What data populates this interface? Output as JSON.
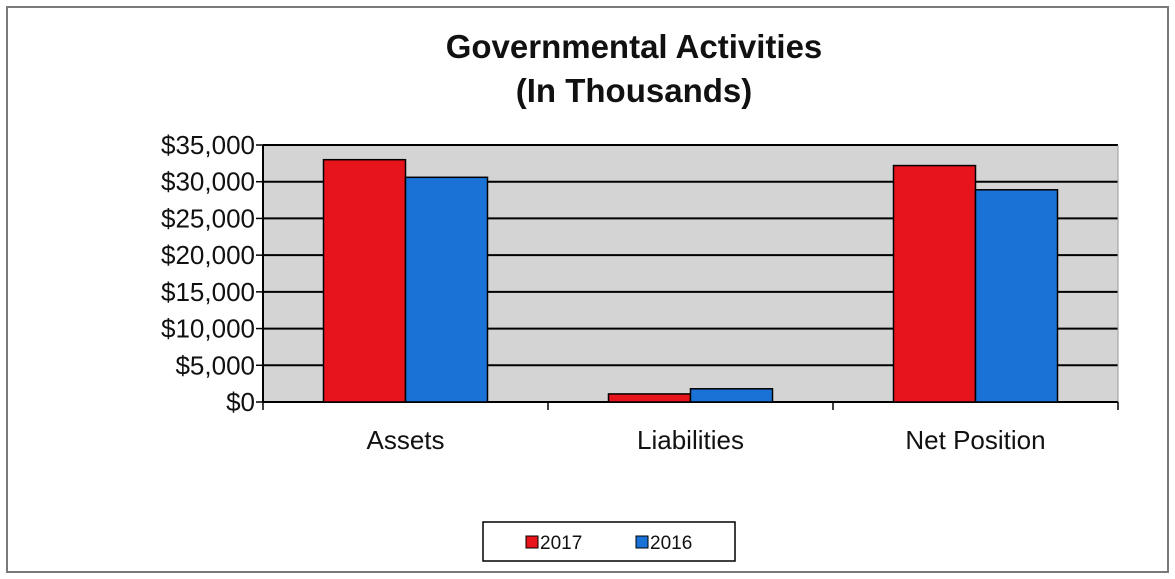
{
  "chart_data": {
    "type": "bar",
    "title": "Governmental Activities",
    "subtitle": "(In Thousands)",
    "categories": [
      "Assets",
      "Liabilities",
      "Net Position"
    ],
    "series": [
      {
        "name": "2017",
        "color": "#e8141c",
        "values": [
          33000,
          1100,
          32200
        ]
      },
      {
        "name": "2016",
        "color": "#1a72d6",
        "values": [
          30600,
          1800,
          28900
        ]
      }
    ],
    "yticks": [
      "$0",
      "$5,000",
      "$10,000",
      "$15,000",
      "$20,000",
      "$25,000",
      "$30,000",
      "$35,000"
    ],
    "ylim": [
      0,
      35000
    ],
    "grid": true,
    "plot_background": "#d4d4d4",
    "legend_position": "bottom"
  }
}
